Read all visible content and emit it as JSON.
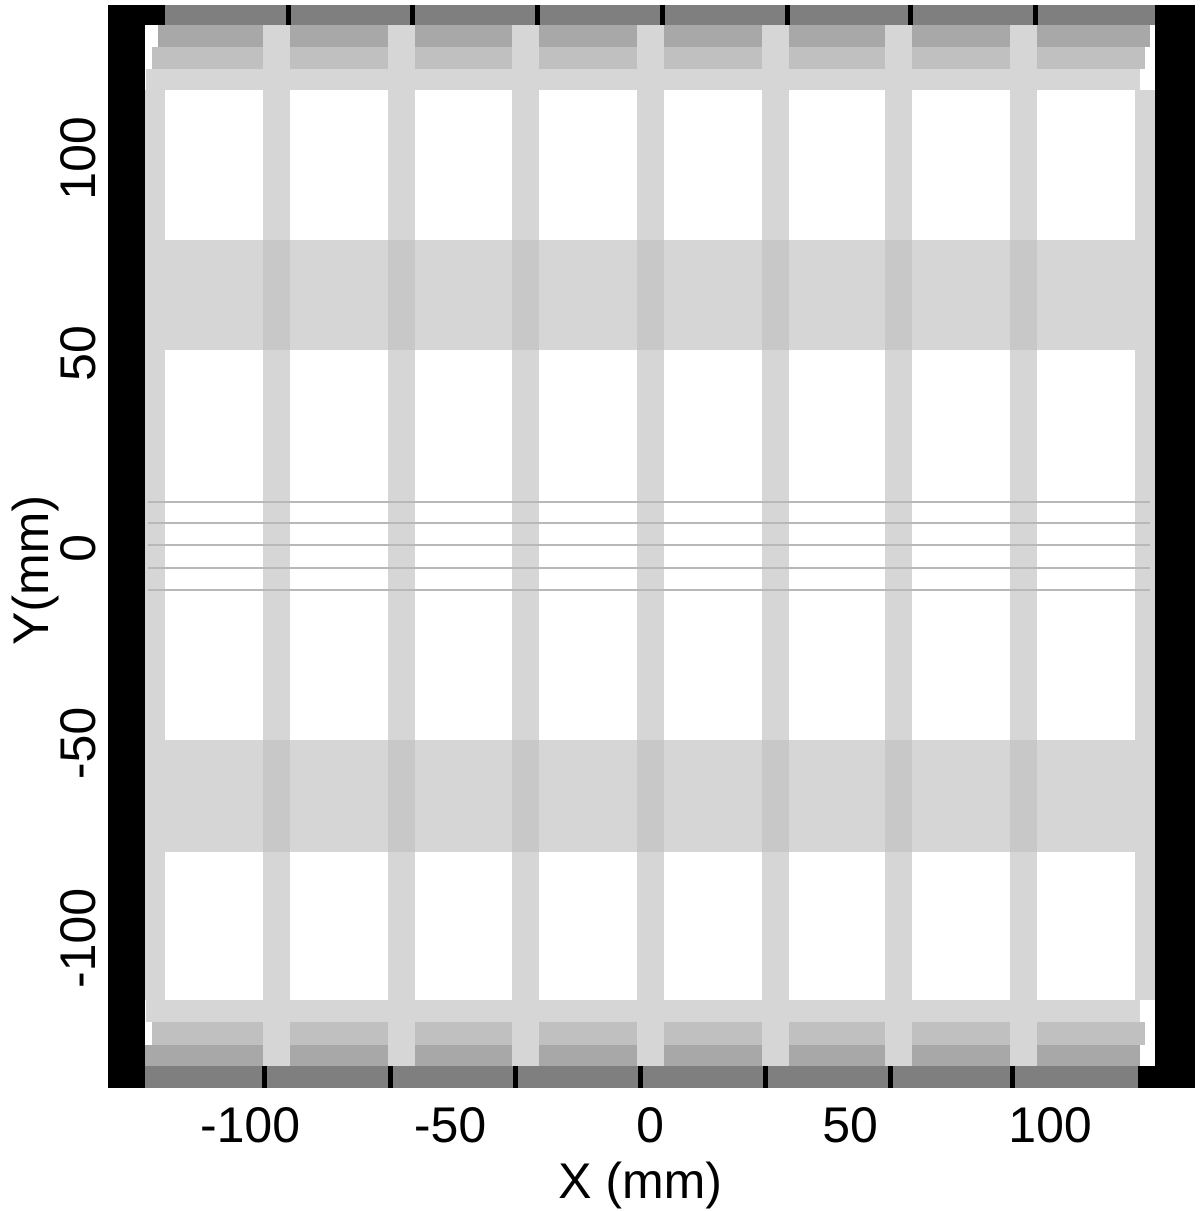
{
  "chart_data": {
    "type": "heatmap",
    "title": "",
    "xlabel": "X (mm)",
    "ylabel": "Y(mm)",
    "xlim": [
      -135,
      136
    ],
    "ylim": [
      -138,
      139
    ],
    "x_ticks": [
      -100,
      -50,
      0,
      50,
      100
    ],
    "x_tick_labels": [
      "-100",
      "-50",
      "0",
      "50",
      "100"
    ],
    "y_ticks": [
      -100,
      -50,
      0,
      50,
      100
    ],
    "y_tick_labels": [
      "-100",
      "-50",
      "0",
      "50",
      "100"
    ],
    "grid": false,
    "colormap": "grayscale",
    "colors": {
      "black": "#000000",
      "dark_gray": "#7f7f7f",
      "mid_gray": "#a8a8a8",
      "gray": "#c0c0c0",
      "light_gray": "#d6d6d6",
      "white": "#ffffff"
    }
  }
}
